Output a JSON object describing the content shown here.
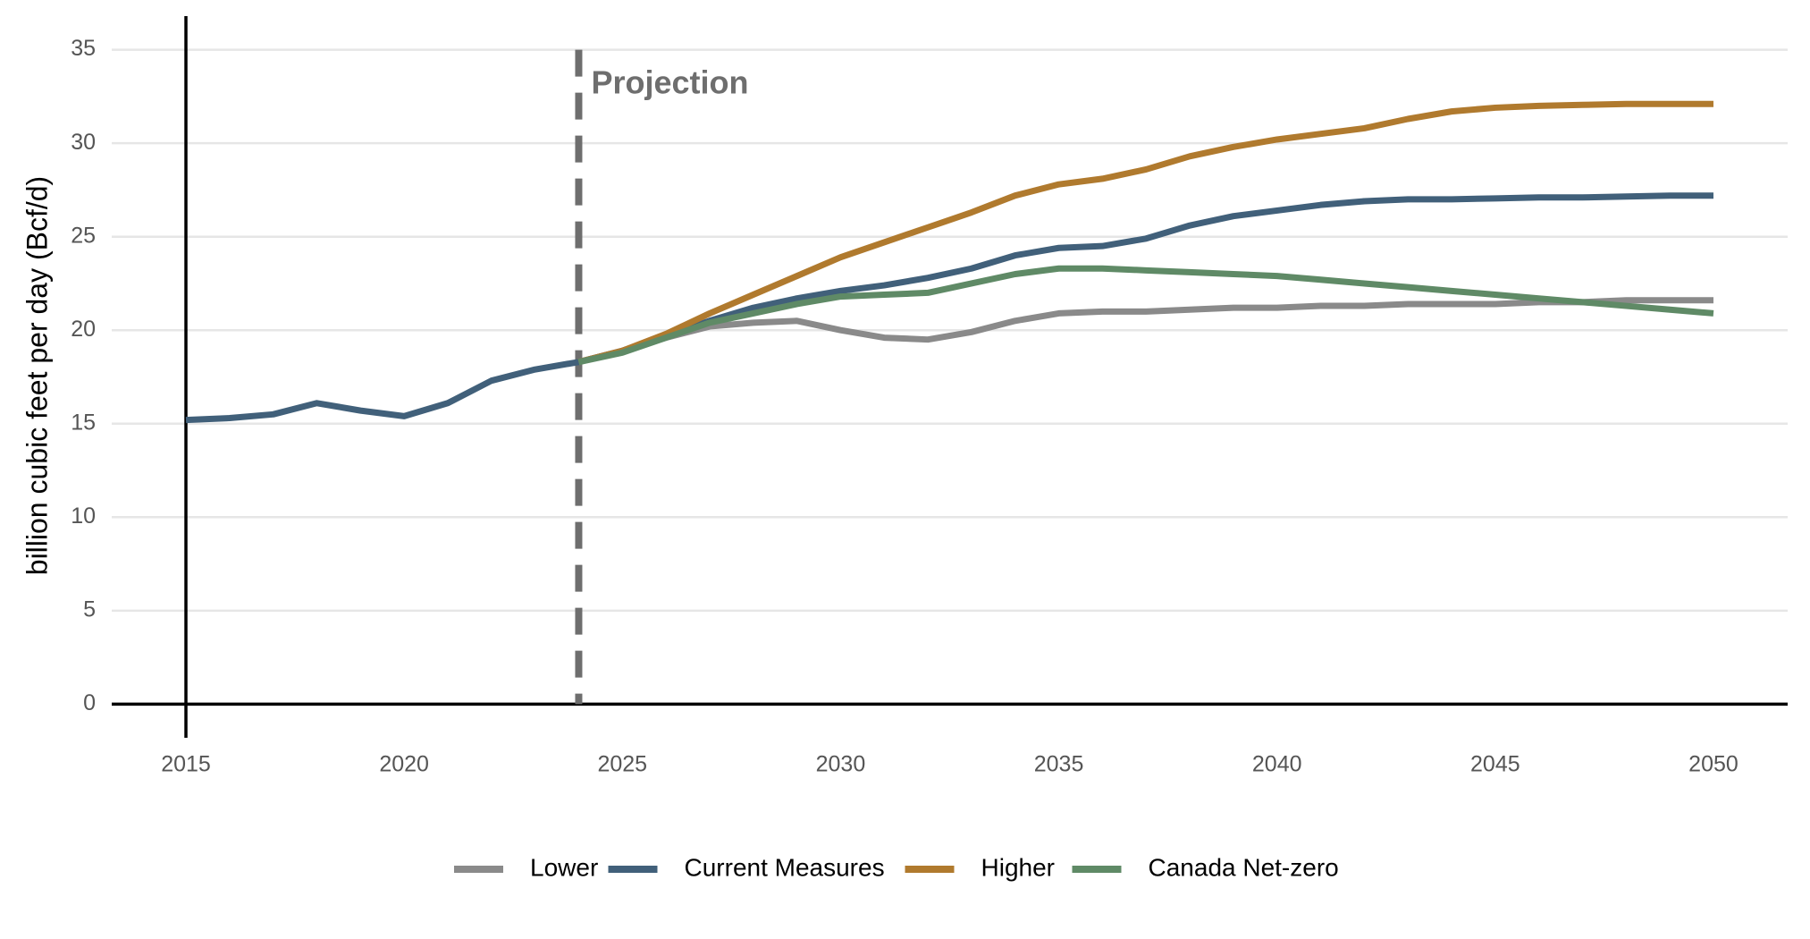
{
  "chart_data": {
    "type": "line",
    "y_label": "billion cubic feet per day (Bcf/d)",
    "annotation": {
      "text": "Projection",
      "x": 2024
    },
    "x": [
      2015,
      2016,
      2017,
      2018,
      2019,
      2020,
      2021,
      2022,
      2023,
      2024,
      2025,
      2026,
      2027,
      2028,
      2029,
      2030,
      2031,
      2032,
      2033,
      2034,
      2035,
      2036,
      2037,
      2038,
      2039,
      2040,
      2041,
      2042,
      2043,
      2044,
      2045,
      2046,
      2047,
      2048,
      2049,
      2050
    ],
    "series": [
      {
        "name": "Lower",
        "color": "#8a8a8a",
        "values": [
          null,
          null,
          null,
          null,
          null,
          null,
          null,
          null,
          null,
          18.3,
          18.9,
          19.6,
          20.2,
          20.4,
          20.5,
          20.0,
          19.6,
          19.5,
          19.9,
          20.5,
          20.9,
          21.0,
          21.0,
          21.1,
          21.2,
          21.2,
          21.3,
          21.3,
          21.4,
          21.4,
          21.4,
          21.5,
          21.5,
          21.6,
          21.6,
          21.6
        ]
      },
      {
        "name": "Current Measures",
        "color": "#41607a",
        "values": [
          15.2,
          15.3,
          15.5,
          16.1,
          15.7,
          15.4,
          16.1,
          17.3,
          17.9,
          18.3,
          18.9,
          19.7,
          20.5,
          21.2,
          21.7,
          22.1,
          22.4,
          22.8,
          23.3,
          24.0,
          24.4,
          24.5,
          24.9,
          25.6,
          26.1,
          26.4,
          26.7,
          26.9,
          27.0,
          27.0,
          27.05,
          27.1,
          27.1,
          27.15,
          27.2,
          27.2
        ]
      },
      {
        "name": "Higher",
        "color": "#b07a2e",
        "values": [
          null,
          null,
          null,
          null,
          null,
          null,
          null,
          null,
          null,
          18.3,
          18.9,
          19.8,
          20.9,
          21.9,
          22.9,
          23.9,
          24.7,
          25.5,
          26.3,
          27.2,
          27.8,
          28.1,
          28.6,
          29.3,
          29.8,
          30.2,
          30.5,
          30.8,
          31.3,
          31.7,
          31.9,
          32.0,
          32.05,
          32.1,
          32.1,
          32.1
        ]
      },
      {
        "name": "Canada Net-zero",
        "color": "#5f8a66",
        "values": [
          null,
          null,
          null,
          null,
          null,
          null,
          null,
          null,
          null,
          18.3,
          18.8,
          19.6,
          20.4,
          20.9,
          21.4,
          21.8,
          21.9,
          22.0,
          22.5,
          23.0,
          23.3,
          23.3,
          23.2,
          23.1,
          23.0,
          22.9,
          22.7,
          22.5,
          22.3,
          22.1,
          21.9,
          21.7,
          21.5,
          21.3,
          21.1,
          20.9
        ]
      }
    ],
    "xlim": [
      2013.3,
      2051.7
    ],
    "xticks": [
      2015,
      2020,
      2025,
      2030,
      2035,
      2040,
      2045,
      2050
    ],
    "ylim": [
      -1.8,
      36.8
    ],
    "yticks": [
      0,
      5,
      10,
      15,
      20,
      25,
      30,
      35
    ],
    "grid": true,
    "legend": "bottom"
  }
}
